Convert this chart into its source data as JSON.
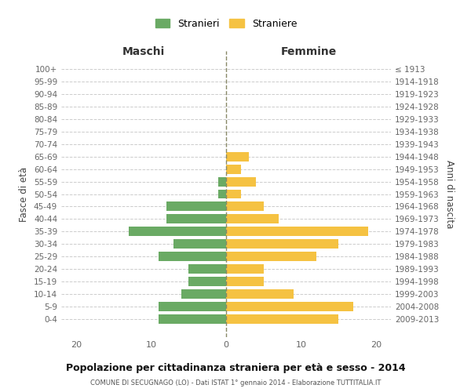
{
  "age_groups": [
    "100+",
    "95-99",
    "90-94",
    "85-89",
    "80-84",
    "75-79",
    "70-74",
    "65-69",
    "60-64",
    "55-59",
    "50-54",
    "45-49",
    "40-44",
    "35-39",
    "30-34",
    "25-29",
    "20-24",
    "15-19",
    "10-14",
    "5-9",
    "0-4"
  ],
  "birth_years": [
    "≤ 1913",
    "1914-1918",
    "1919-1923",
    "1924-1928",
    "1929-1933",
    "1934-1938",
    "1939-1943",
    "1944-1948",
    "1949-1953",
    "1954-1958",
    "1959-1963",
    "1964-1968",
    "1969-1973",
    "1974-1978",
    "1979-1983",
    "1984-1988",
    "1989-1993",
    "1994-1998",
    "1999-2003",
    "2004-2008",
    "2009-2013"
  ],
  "maschi": [
    0,
    0,
    0,
    0,
    0,
    0,
    0,
    0,
    0,
    1,
    1,
    8,
    8,
    13,
    7,
    9,
    5,
    5,
    6,
    9,
    9
  ],
  "femmine": [
    0,
    0,
    0,
    0,
    0,
    0,
    0,
    3,
    2,
    4,
    2,
    5,
    7,
    19,
    15,
    12,
    5,
    5,
    9,
    17,
    15
  ],
  "color_maschi": "#6aaa64",
  "color_femmine": "#f5c242",
  "background_color": "#ffffff",
  "grid_color": "#cccccc",
  "title": "Popolazione per cittadinanza straniera per età e sesso - 2014",
  "subtitle": "COMUNE DI SECUGNAGO (LO) - Dati ISTAT 1° gennaio 2014 - Elaborazione TUTTITALIA.IT",
  "xlabel_left": "Maschi",
  "xlabel_right": "Femmine",
  "ylabel_left": "Fasce di età",
  "ylabel_right": "Anni di nascita",
  "legend_stranieri": "Stranieri",
  "legend_straniere": "Straniere",
  "xlim": 22,
  "bar_height": 0.75
}
